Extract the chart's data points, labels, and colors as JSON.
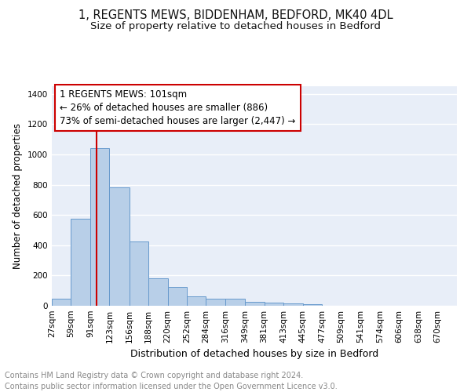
{
  "title1": "1, REGENTS MEWS, BIDDENHAM, BEDFORD, MK40 4DL",
  "title2": "Size of property relative to detached houses in Bedford",
  "xlabel": "Distribution of detached houses by size in Bedford",
  "ylabel": "Number of detached properties",
  "footer1": "Contains HM Land Registry data © Crown copyright and database right 2024.",
  "footer2": "Contains public sector information licensed under the Open Government Licence v3.0.",
  "annotation_line1": "1 REGENTS MEWS: 101sqm",
  "annotation_line2": "← 26% of detached houses are smaller (886)",
  "annotation_line3": "73% of semi-detached houses are larger (2,447) →",
  "bar_x_labels": [
    "27sqm",
    "59sqm",
    "91sqm",
    "123sqm",
    "156sqm",
    "188sqm",
    "220sqm",
    "252sqm",
    "284sqm",
    "316sqm",
    "349sqm",
    "381sqm",
    "413sqm",
    "445sqm",
    "477sqm",
    "509sqm",
    "541sqm",
    "574sqm",
    "606sqm",
    "638sqm",
    "670sqm"
  ],
  "bar_heights": [
    47,
    575,
    1040,
    780,
    425,
    182,
    125,
    62,
    48,
    48,
    28,
    20,
    18,
    12,
    0,
    0,
    0,
    0,
    0,
    0,
    0
  ],
  "bins": [
    27,
    59,
    91,
    123,
    156,
    188,
    220,
    252,
    284,
    316,
    349,
    381,
    413,
    445,
    477,
    509,
    541,
    574,
    606,
    638,
    670,
    702
  ],
  "bar_color": "#b8cfe8",
  "bar_edge_color": "#6699cc",
  "red_line_x": 101,
  "ylim": [
    0,
    1450
  ],
  "yticks": [
    0,
    200,
    400,
    600,
    800,
    1000,
    1200,
    1400
  ],
  "bg_color": "#e8eef8",
  "grid_color": "#ffffff",
  "annotation_box_facecolor": "#ffffff",
  "annotation_box_edgecolor": "#cc0000",
  "red_line_color": "#cc0000",
  "title1_fontsize": 10.5,
  "title2_fontsize": 9.5,
  "xlabel_fontsize": 9,
  "ylabel_fontsize": 8.5,
  "tick_fontsize": 7.5,
  "annotation_fontsize": 8.5,
  "footer_fontsize": 7
}
